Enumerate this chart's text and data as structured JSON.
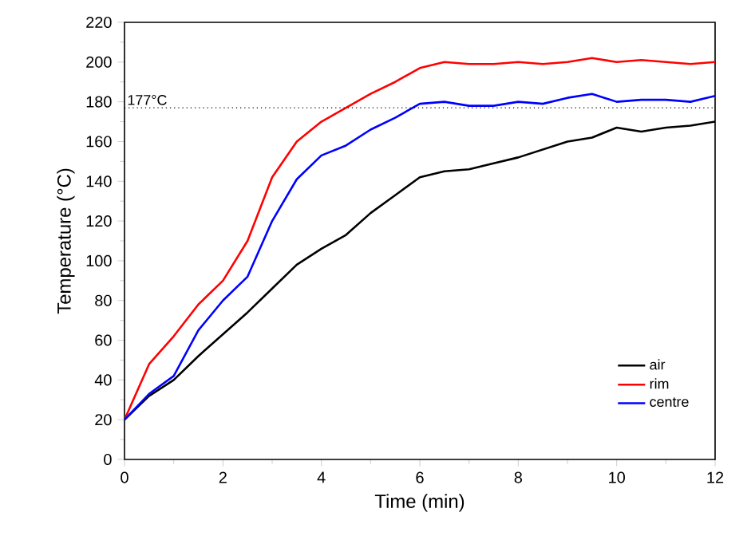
{
  "chart_data": {
    "type": "line",
    "xlabel": "Time (min)",
    "ylabel": "Temperature (°C)",
    "x": [
      0,
      0.5,
      1,
      1.5,
      2,
      2.5,
      3,
      3.5,
      4,
      4.5,
      5,
      5.5,
      6,
      6.5,
      7,
      7.5,
      8,
      8.5,
      9,
      9.5,
      10,
      10.5,
      11,
      11.5,
      12
    ],
    "series": [
      {
        "name": "air",
        "color": "#000000",
        "values": [
          20,
          32,
          40,
          52,
          63,
          74,
          86,
          98,
          106,
          113,
          124,
          133,
          142,
          145,
          146,
          149,
          152,
          156,
          160,
          162,
          167,
          165,
          167,
          168,
          170
        ]
      },
      {
        "name": "rim",
        "color": "#ff0000",
        "values": [
          20,
          48,
          62,
          78,
          90,
          110,
          142,
          160,
          170,
          177,
          184,
          190,
          197,
          200,
          199,
          199,
          200,
          199,
          200,
          202,
          200,
          201,
          200,
          199,
          200
        ]
      },
      {
        "name": "centre",
        "color": "#0000ff",
        "values": [
          20,
          33,
          42,
          65,
          80,
          92,
          120,
          141,
          153,
          158,
          166,
          172,
          179,
          180,
          178,
          178,
          180,
          179,
          182,
          184,
          180,
          181,
          181,
          180,
          183
        ]
      }
    ],
    "xlim": [
      0,
      12
    ],
    "ylim": [
      0,
      220
    ],
    "xticks": [
      0,
      2,
      4,
      6,
      8,
      10,
      12
    ],
    "yticks": [
      0,
      20,
      40,
      60,
      80,
      100,
      120,
      140,
      160,
      180,
      200,
      220
    ],
    "ref_lines": [
      {
        "axis": "y",
        "value": 177,
        "label": "177°C",
        "line_style": "dotted"
      }
    ],
    "legend": "bottom right",
    "grid": false,
    "marker": "none",
    "line_style": "solid"
  }
}
